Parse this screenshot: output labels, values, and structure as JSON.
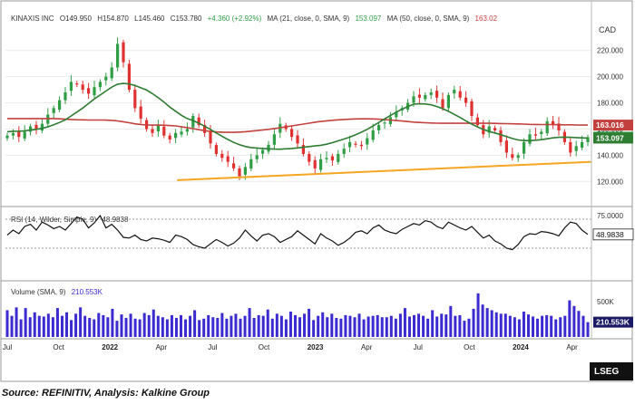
{
  "header": {
    "symbol": "KINAXIS INC",
    "open": "O149.950",
    "high": "H154.870",
    "low": "L145.460",
    "close": "C153.780",
    "change": "+4.360 (+2.92%)",
    "ma21_label": "MA (21, close, 0, SMA, 9)",
    "ma21_value": "153.097",
    "ma50_label": "MA (50, close, 0, SMA, 9)",
    "ma50_value": "163.02",
    "currency": "CAD"
  },
  "rsi_label": "RSI (14, Wilder, Simple, 9)",
  "rsi_value_text": "48.9838",
  "volume_label": "Volume (SMA, 9)",
  "volume_value_text": "210.553K",
  "source": "Source: REFINITIV, Analysis: Kalkine Group",
  "logo_text": "LSEG",
  "colors": {
    "up": "#2f9e44",
    "down": "#e03131",
    "ma21": "#2f7d32",
    "ma50": "#c2403d",
    "trend": "#f5a623",
    "volume": "#3b2bd0",
    "price_tag": "#c2403d",
    "close_tag": "#2f9e44",
    "ma21_tag": "#2f7d32",
    "dark_tag": "#1a1a66"
  },
  "chart_data": [
    {
      "type": "candlestick",
      "title": "KINAXIS INC",
      "y_axis_ticks": [
        120,
        140,
        160,
        180,
        200,
        220
      ],
      "y_axis_ticks_text": [
        "120.000",
        "140.000",
        "160.000",
        "180.000",
        "200.000",
        "220.000"
      ],
      "ylim": [
        105,
        235
      ],
      "x_axis_labels": [
        "Jul",
        "Oct",
        "2022",
        "Apr",
        "Jul",
        "Oct",
        "2023",
        "Apr",
        "Jul",
        "Oct",
        "2024",
        "Apr"
      ],
      "x_axis_label_positions": [
        0,
        13,
        26,
        39,
        52,
        65,
        78,
        91,
        104,
        117,
        130,
        143
      ],
      "price_tags": [
        {
          "label": "163.016",
          "value": 163.016,
          "color_key": "price_tag"
        },
        {
          "label": "153.780",
          "value": 153.78,
          "color_key": "close_tag"
        },
        {
          "label": "153.097",
          "value": 153.097,
          "color_key": "ma21_tag"
        }
      ],
      "close": [
        155,
        157,
        154,
        158,
        162,
        160,
        164,
        171,
        176,
        182,
        188,
        196,
        194,
        190,
        187,
        192,
        196,
        200,
        207,
        225,
        211,
        190,
        176,
        168,
        160,
        157,
        163,
        155,
        152,
        157,
        158,
        160,
        170,
        163,
        157,
        149,
        141,
        138,
        135,
        130,
        124,
        131,
        137,
        140,
        144,
        148,
        156,
        164,
        160,
        154,
        149,
        141,
        135,
        130,
        137,
        138,
        136,
        141,
        145,
        150,
        148,
        147,
        153,
        159,
        163,
        165,
        169,
        173,
        176,
        180,
        185,
        184,
        186,
        188,
        184,
        176,
        186,
        190,
        184,
        180,
        170,
        163,
        156,
        162,
        159,
        150,
        142,
        138,
        140,
        150,
        156,
        155,
        158,
        166,
        163,
        159,
        150,
        142,
        147,
        150,
        153.78
      ],
      "ma21": [
        158,
        158.3,
        158.4,
        158.6,
        159.2,
        159.8,
        160.5,
        161.7,
        163.3,
        165,
        167,
        170,
        173,
        176,
        179.5,
        183,
        186,
        189,
        192,
        194.3,
        194.8,
        194.4,
        193.2,
        191.5,
        189.8,
        187,
        184,
        180.5,
        176.8,
        173.6,
        170.5,
        168,
        166.5,
        164.5,
        162.2,
        159.7,
        157,
        154.5,
        152,
        149.8,
        148,
        146.7,
        145.9,
        145.5,
        145.2,
        144.9,
        144.7,
        144.6,
        144.9,
        145.2,
        145.6,
        146.1,
        146.6,
        147.1,
        147.6,
        148.4,
        149.6,
        151,
        152.4,
        153.8,
        155.6,
        157.6,
        159.8,
        162.3,
        165,
        167.7,
        170.4,
        172.9,
        175.2,
        177.2,
        179,
        179.3,
        179.1,
        178.5,
        177.2,
        175.5,
        173.5,
        171.2,
        168.8,
        166.3,
        163.8,
        161.6,
        159.7,
        158.2,
        157,
        155.7,
        154.2,
        152.8,
        151.7,
        151.2,
        151.2,
        151.5,
        151.9,
        152.6,
        153.3,
        153.7,
        153.8,
        153.7,
        153.5,
        153.3,
        153.1
      ],
      "ma50": [
        168,
        168,
        168,
        168,
        168,
        168,
        168,
        168,
        168,
        167.8,
        167.5,
        167.3,
        167.1,
        167,
        166.9,
        166.9,
        166.9,
        166.8,
        166.6,
        166.2,
        165.6,
        164.8,
        164,
        163.4,
        163.1,
        163,
        163,
        162.9,
        162.7,
        162.4,
        161.8,
        161.1,
        160.3,
        159.5,
        158.8,
        158.2,
        157.8,
        157.6,
        157.5,
        157.5,
        157.7,
        158,
        158.4,
        158.8,
        159.3,
        159.8,
        160.4,
        161,
        161.7,
        162.4,
        163.1,
        163.8,
        164.5,
        165.2,
        165.8,
        166.3,
        166.7,
        167,
        167.3,
        167.5,
        167.7,
        167.8,
        167.8,
        167.7,
        167.5,
        167.2,
        166.9,
        166.5,
        166.1,
        165.7,
        165.3,
        165,
        164.8,
        164.6,
        164.5,
        164.4,
        164.4,
        164.4,
        164.4,
        164.4,
        164.4,
        164.4,
        164.4,
        164.4,
        164.3,
        164.2,
        164.1,
        164,
        163.9,
        163.8,
        163.6,
        163.5,
        163.4,
        163.4,
        163.4,
        163.3,
        163.2,
        163.2,
        163.1,
        163.0,
        163.016
      ],
      "support_line": {
        "from": {
          "index": 43,
          "value": 121
        },
        "to": {
          "index": 143,
          "value": 135
        }
      }
    },
    {
      "type": "line",
      "title": "RSI (14, Wilder, Simple, 9)",
      "y_axis_ticks": [
        75
      ],
      "y_axis_ticks_text": [
        "75.0000"
      ],
      "upper_band": 70,
      "lower_band": 30,
      "ylim": [
        20,
        80
      ],
      "values": [
        48,
        55,
        50,
        60,
        63,
        55,
        66,
        62,
        57,
        60,
        55,
        64,
        73,
        70,
        58,
        65,
        75,
        58,
        63,
        55,
        45,
        44,
        48,
        42,
        40,
        44,
        43,
        41,
        38,
        48,
        46,
        42,
        35,
        32,
        30,
        36,
        42,
        38,
        33,
        37,
        44,
        55,
        47,
        40,
        48,
        50,
        46,
        38,
        42,
        46,
        54,
        48,
        42,
        36,
        50,
        44,
        40,
        34,
        38,
        44,
        52,
        54,
        50,
        58,
        62,
        55,
        52,
        50,
        56,
        60,
        64,
        62,
        68,
        66,
        60,
        57,
        66,
        62,
        58,
        55,
        60,
        52,
        44,
        48,
        40,
        36,
        30,
        28,
        35,
        46,
        50,
        49,
        53,
        52,
        50,
        47,
        58,
        66,
        64,
        55,
        48.98
      ]
    },
    {
      "type": "bar",
      "title": "Volume (SMA, 9)",
      "y_axis_ticks": [
        500
      ],
      "y_axis_ticks_text": [
        "500K"
      ],
      "unit": "K",
      "ylim": [
        0,
        720
      ],
      "values": [
        380,
        300,
        420,
        250,
        410,
        280,
        350,
        300,
        290,
        330,
        280,
        410,
        300,
        350,
        240,
        330,
        420,
        300,
        270,
        250,
        340,
        310,
        280,
        400,
        230,
        320,
        270,
        330,
        260,
        250,
        340,
        310,
        390,
        300,
        280,
        250,
        310,
        270,
        310,
        250,
        300,
        380,
        240,
        260,
        310,
        280,
        270,
        340,
        260,
        300,
        330,
        260,
        300,
        410,
        270,
        310,
        300,
        390,
        260,
        330,
        300,
        250,
        360,
        310,
        280,
        330,
        400,
        240,
        300,
        350,
        280,
        330,
        270,
        260,
        310,
        300,
        280,
        330,
        250,
        290,
        300,
        310,
        280,
        280,
        300,
        260,
        330,
        410,
        290,
        310,
        330,
        300,
        260,
        380,
        290,
        330,
        320,
        440,
        300,
        310,
        230,
        260,
        400,
        620,
        460,
        410,
        380,
        350,
        330,
        330,
        300,
        280,
        250,
        360,
        320,
        290,
        260,
        300,
        310,
        300,
        250,
        280,
        300,
        520,
        440,
        370,
        300,
        210.553
      ]
    }
  ]
}
